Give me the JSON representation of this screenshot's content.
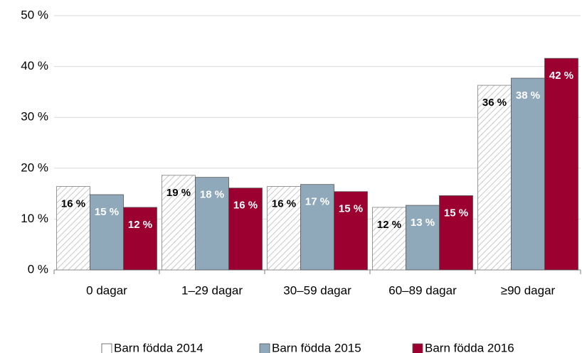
{
  "chart_data": {
    "type": "bar",
    "categories": [
      "0 dagar",
      "1–29 dagar",
      "30–59 dagar",
      "60–89 dagar",
      "≥90 dagar"
    ],
    "series": [
      {
        "name": "Barn födda 2014",
        "color": "#ffffff",
        "values": [
          16.4,
          18.6,
          16.4,
          12.3,
          36.3
        ],
        "value_labels": [
          "16 %",
          "19 %",
          "16 %",
          "12 %",
          "36 %"
        ]
      },
      {
        "name": "Barn födda 2015",
        "color": "#8fa9bb",
        "values": [
          14.8,
          18.2,
          16.8,
          12.7,
          37.7
        ],
        "value_labels": [
          "15 %",
          "18 %",
          "17 %",
          "13 %",
          "38 %"
        ]
      },
      {
        "name": "Barn födda 2016",
        "color": "#9b0030",
        "values": [
          12.3,
          16.1,
          15.4,
          14.6,
          41.6
        ],
        "value_labels": [
          "12 %",
          "16 %",
          "15 %",
          "15 %",
          "42 %"
        ]
      }
    ],
    "ylim": [
      0,
      50
    ],
    "yticks": [
      {
        "value": 0,
        "label": "0 %"
      },
      {
        "value": 10,
        "label": "10 %"
      },
      {
        "value": 20,
        "label": "20 %"
      },
      {
        "value": 30,
        "label": "30 %"
      },
      {
        "value": 40,
        "label": "40 %"
      },
      {
        "value": 50,
        "label": "50 %"
      }
    ],
    "grid": true,
    "legend": "bottom"
  }
}
